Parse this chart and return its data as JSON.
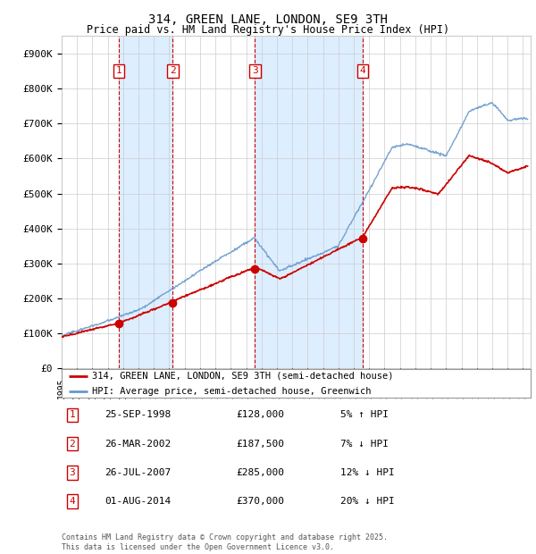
{
  "title": "314, GREEN LANE, LONDON, SE9 3TH",
  "subtitle": "Price paid vs. HM Land Registry's House Price Index (HPI)",
  "ylabel_ticks": [
    "£0",
    "£100K",
    "£200K",
    "£300K",
    "£400K",
    "£500K",
    "£600K",
    "£700K",
    "£800K",
    "£900K"
  ],
  "ytick_vals": [
    0,
    100000,
    200000,
    300000,
    400000,
    500000,
    600000,
    700000,
    800000,
    900000
  ],
  "ylim": [
    0,
    950000
  ],
  "xlim_start": 1995.0,
  "xlim_end": 2025.5,
  "legend_line1": "314, GREEN LANE, LONDON, SE9 3TH (semi-detached house)",
  "legend_line2": "HPI: Average price, semi-detached house, Greenwich",
  "transactions": [
    {
      "num": 1,
      "date": "25-SEP-1998",
      "price": 128000,
      "pct": "5%",
      "dir": "↑",
      "year": 1998.73
    },
    {
      "num": 2,
      "date": "26-MAR-2002",
      "price": 187500,
      "pct": "7%",
      "dir": "↓",
      "year": 2002.23
    },
    {
      "num": 3,
      "date": "26-JUL-2007",
      "price": 285000,
      "pct": "12%",
      "dir": "↓",
      "year": 2007.57
    },
    {
      "num": 4,
      "date": "01-AUG-2014",
      "price": 370000,
      "pct": "20%",
      "dir": "↓",
      "year": 2014.58
    }
  ],
  "footer": "Contains HM Land Registry data © Crown copyright and database right 2025.\nThis data is licensed under the Open Government Licence v3.0.",
  "red_color": "#cc0000",
  "blue_color": "#6699cc",
  "shade_color": "#ddeeff",
  "grid_color": "#cccccc"
}
